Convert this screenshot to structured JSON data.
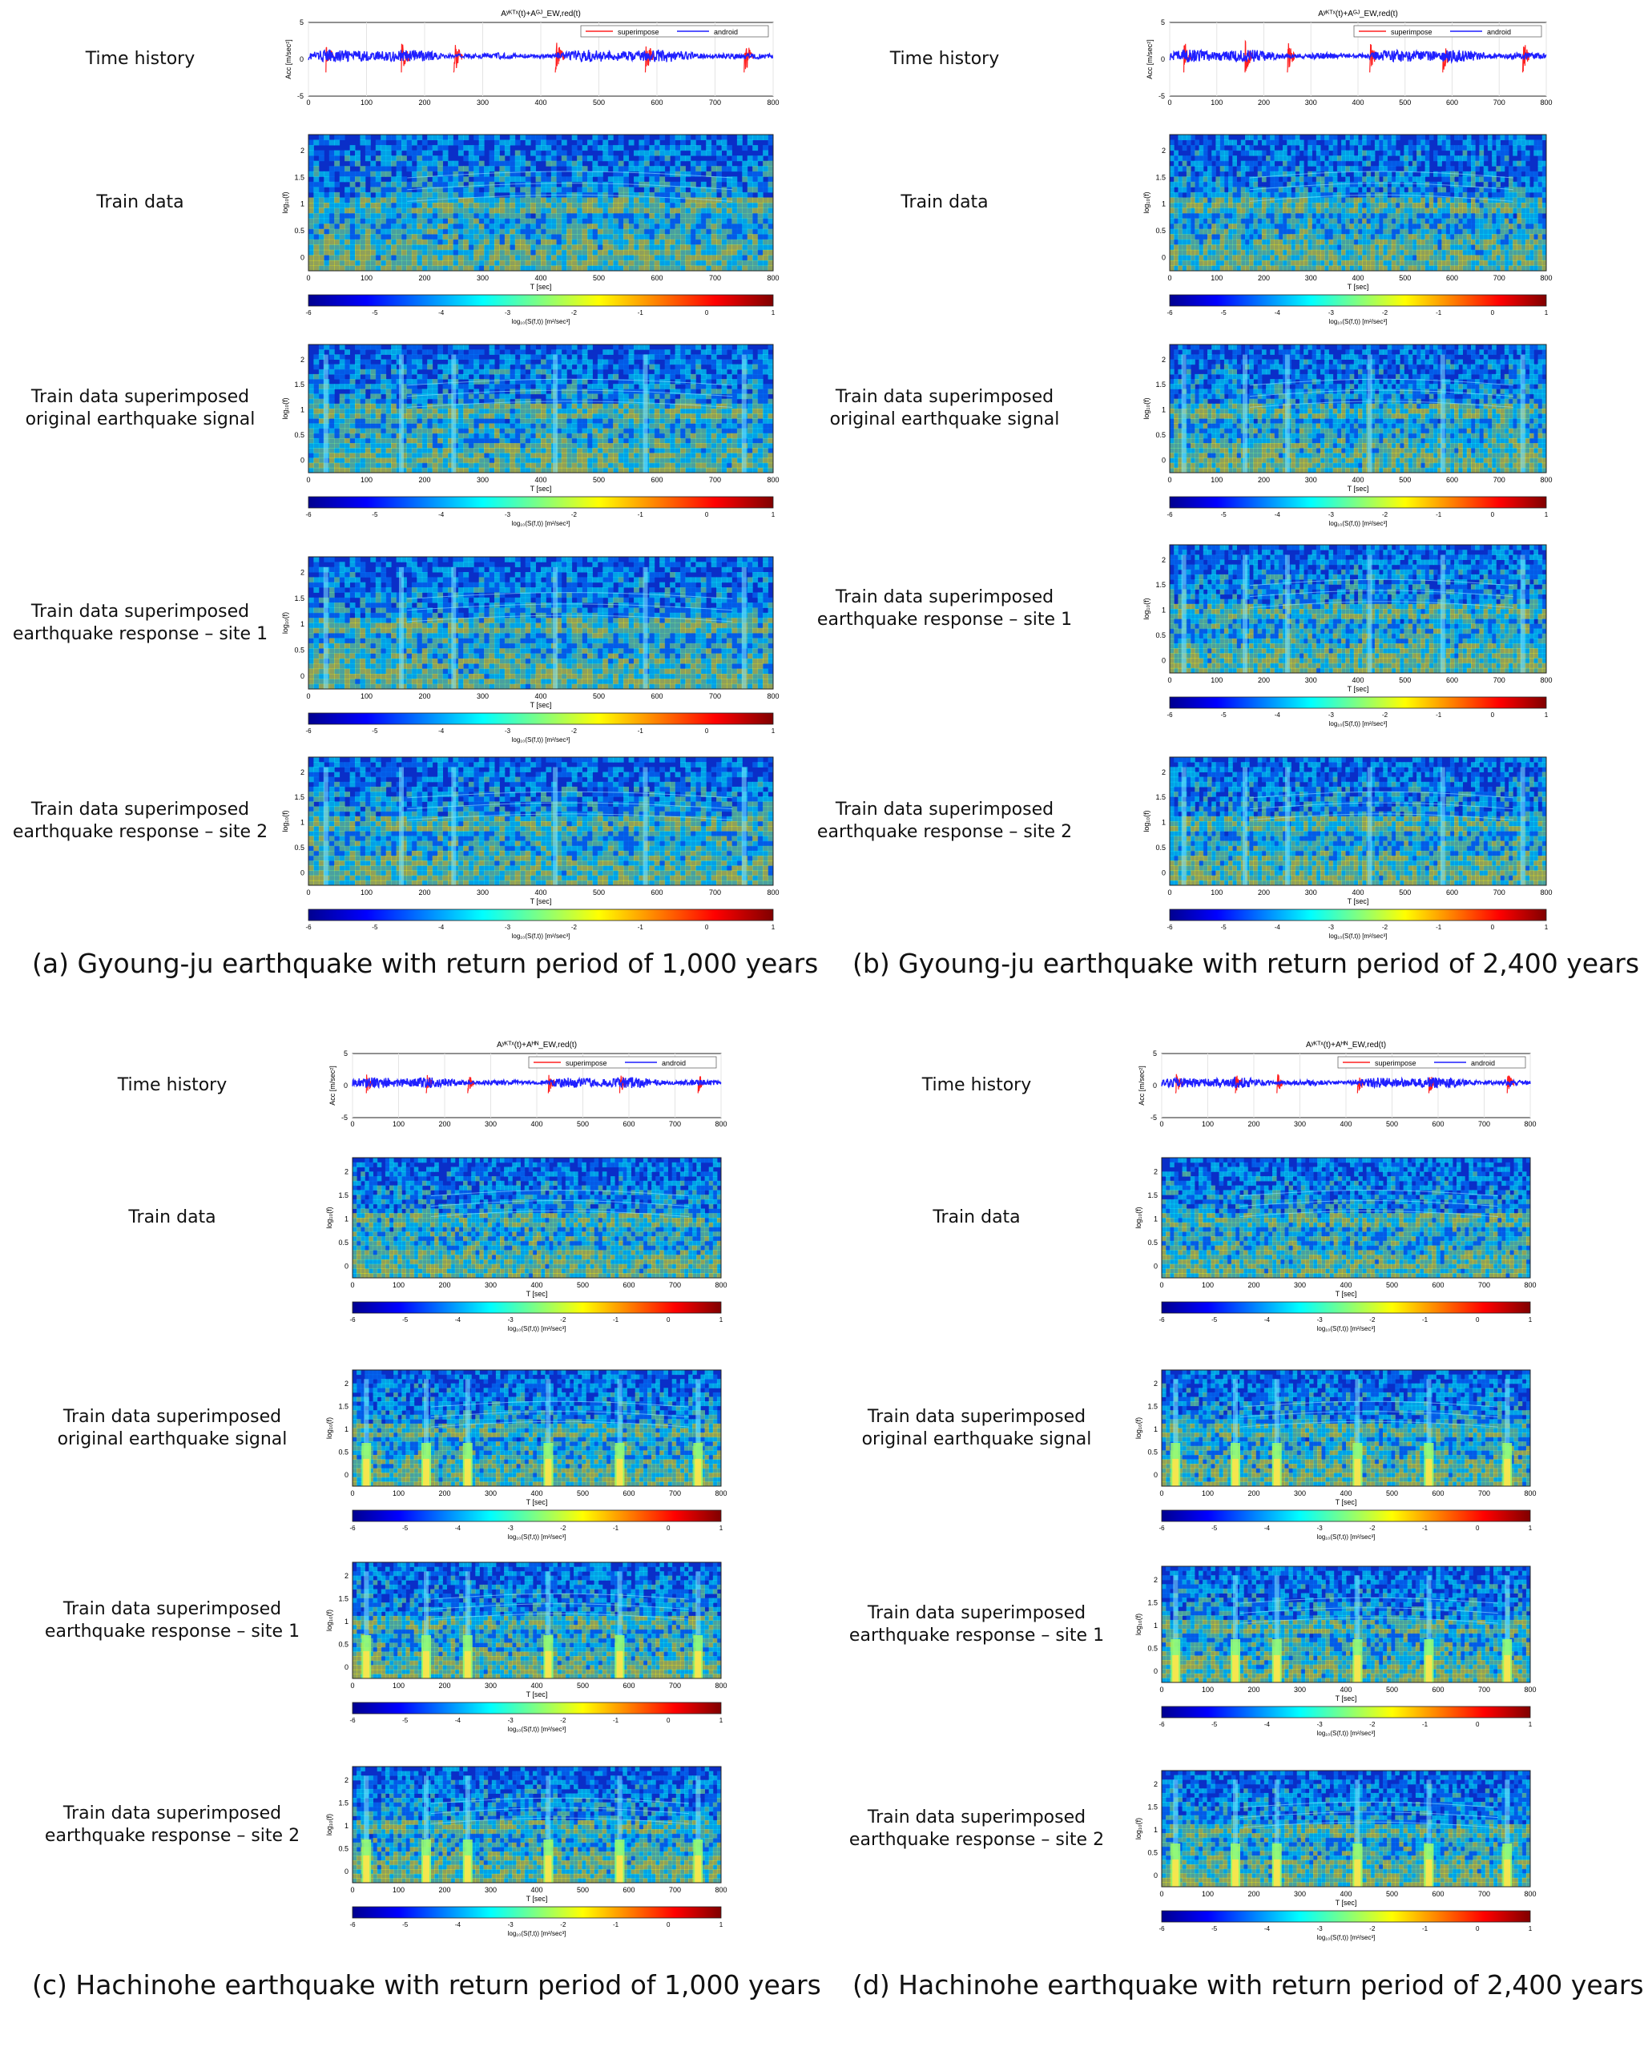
{
  "row_labels": {
    "time_history": "Time history",
    "train_data": "Train data",
    "orig_line1": "Train data superimposed",
    "orig_line2": "original earthquake signal",
    "site1_line1": "Train data superimposed",
    "site1_line2": "earthquake response – site 1",
    "site2_line1": "Train data superimposed",
    "site2_line2": "earthquake response – site 2"
  },
  "panels": [
    {
      "id": "a",
      "caption": "(a) Gyoung-ju earthquake with return period of 1,000 years",
      "time_title": "Aʸᴷᵀˣ(t)+Aᴳᴶ_EW,red(t)",
      "eq": "GJ"
    },
    {
      "id": "b",
      "caption": "(b) Gyoung-ju earthquake with return period of 2,400 years",
      "time_title": "Aʸᴷᵀˣ(t)+Aᴳᴶ_EW,red(t)",
      "eq": "GJ"
    },
    {
      "id": "c",
      "caption": "(c) Hachinohe earthquake with return period of 1,000 years",
      "time_title": "Aʸᴷᵀˣ(t)+Aᴴᴺ_EW,red(t)",
      "eq": "HN"
    },
    {
      "id": "d",
      "caption": "(d) Hachinohe earthquake with return period of 2,400 years",
      "time_title": "Aʸᴷᵀˣ(t)+Aᴴᴺ_EW,red(t)",
      "eq": "HN"
    }
  ],
  "chart_data": [
    {
      "type": "line",
      "name": "time history",
      "series": [
        {
          "name": "superimpose",
          "color": "#ff2020"
        },
        {
          "name": "android",
          "color": "#1f1fff"
        }
      ],
      "xlim": [
        0,
        800
      ],
      "xticks": [
        0,
        100,
        200,
        300,
        400,
        500,
        600,
        700,
        800
      ],
      "ylim": [
        -5,
        5
      ],
      "yticks": [
        -5,
        0,
        5
      ],
      "ylabel": "Acc [m/sec²]"
    },
    {
      "type": "heatmap",
      "name": "spectrogram",
      "xlim": [
        0,
        800
      ],
      "xticks": [
        0,
        100,
        200,
        300,
        400,
        500,
        600,
        700,
        800
      ],
      "xlabel": "T [sec]",
      "ylim": [
        -0.25,
        2.3
      ],
      "yticks": [
        0,
        0.5,
        1,
        1.5,
        2
      ],
      "ylabel": "log₁₀(f)",
      "colorbar_ticks": [
        -6,
        -5,
        -4,
        -3,
        -2,
        -1,
        0,
        1
      ],
      "colorbar_label": "log₁₀(S(f,t)) [m²/sec³]",
      "colormap": [
        "#00008f",
        "#0000ff",
        "#0080ff",
        "#00ffff",
        "#80ff80",
        "#ffff00",
        "#ff8000",
        "#ff0000",
        "#800000"
      ]
    }
  ]
}
